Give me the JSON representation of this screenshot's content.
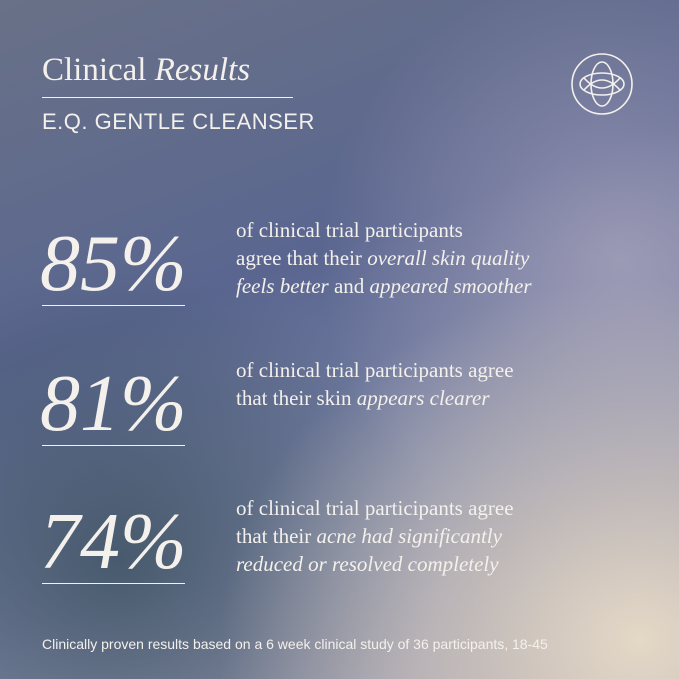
{
  "header": {
    "title": [
      {
        "text": "Clinical",
        "italic": false
      },
      {
        "text": "Results",
        "italic": true
      }
    ],
    "subtitle": "E.Q. GENTLE CLEANSER"
  },
  "stats": [
    {
      "percent": "85%",
      "lines": [
        [
          {
            "text": "of clinical trial participants",
            "italic": false
          }
        ],
        [
          {
            "text": "agree that their",
            "italic": false
          },
          {
            "text": "overall skin quality",
            "italic": true
          }
        ],
        [
          {
            "text": "feels better",
            "italic": true
          },
          {
            "text": "and",
            "italic": false
          },
          {
            "text": "appeared smoother",
            "italic": true
          }
        ]
      ]
    },
    {
      "percent": "81%",
      "lines": [
        [
          {
            "text": "of clinical trial participants agree",
            "italic": false
          }
        ],
        [
          {
            "text": "that their skin",
            "italic": false
          },
          {
            "text": "appears clearer",
            "italic": true
          }
        ]
      ]
    },
    {
      "percent": "74%",
      "lines": [
        [
          {
            "text": "of clinical trial participants agree",
            "italic": false
          }
        ],
        [
          {
            "text": "that their",
            "italic": false
          },
          {
            "text": "acne had significantly",
            "italic": true
          }
        ],
        [
          {
            "text": "reduced or resolved completely",
            "italic": true
          }
        ]
      ]
    }
  ],
  "footer": "Clinically proven results based on a 6 week clinical study of 36 participants, 18-45"
}
